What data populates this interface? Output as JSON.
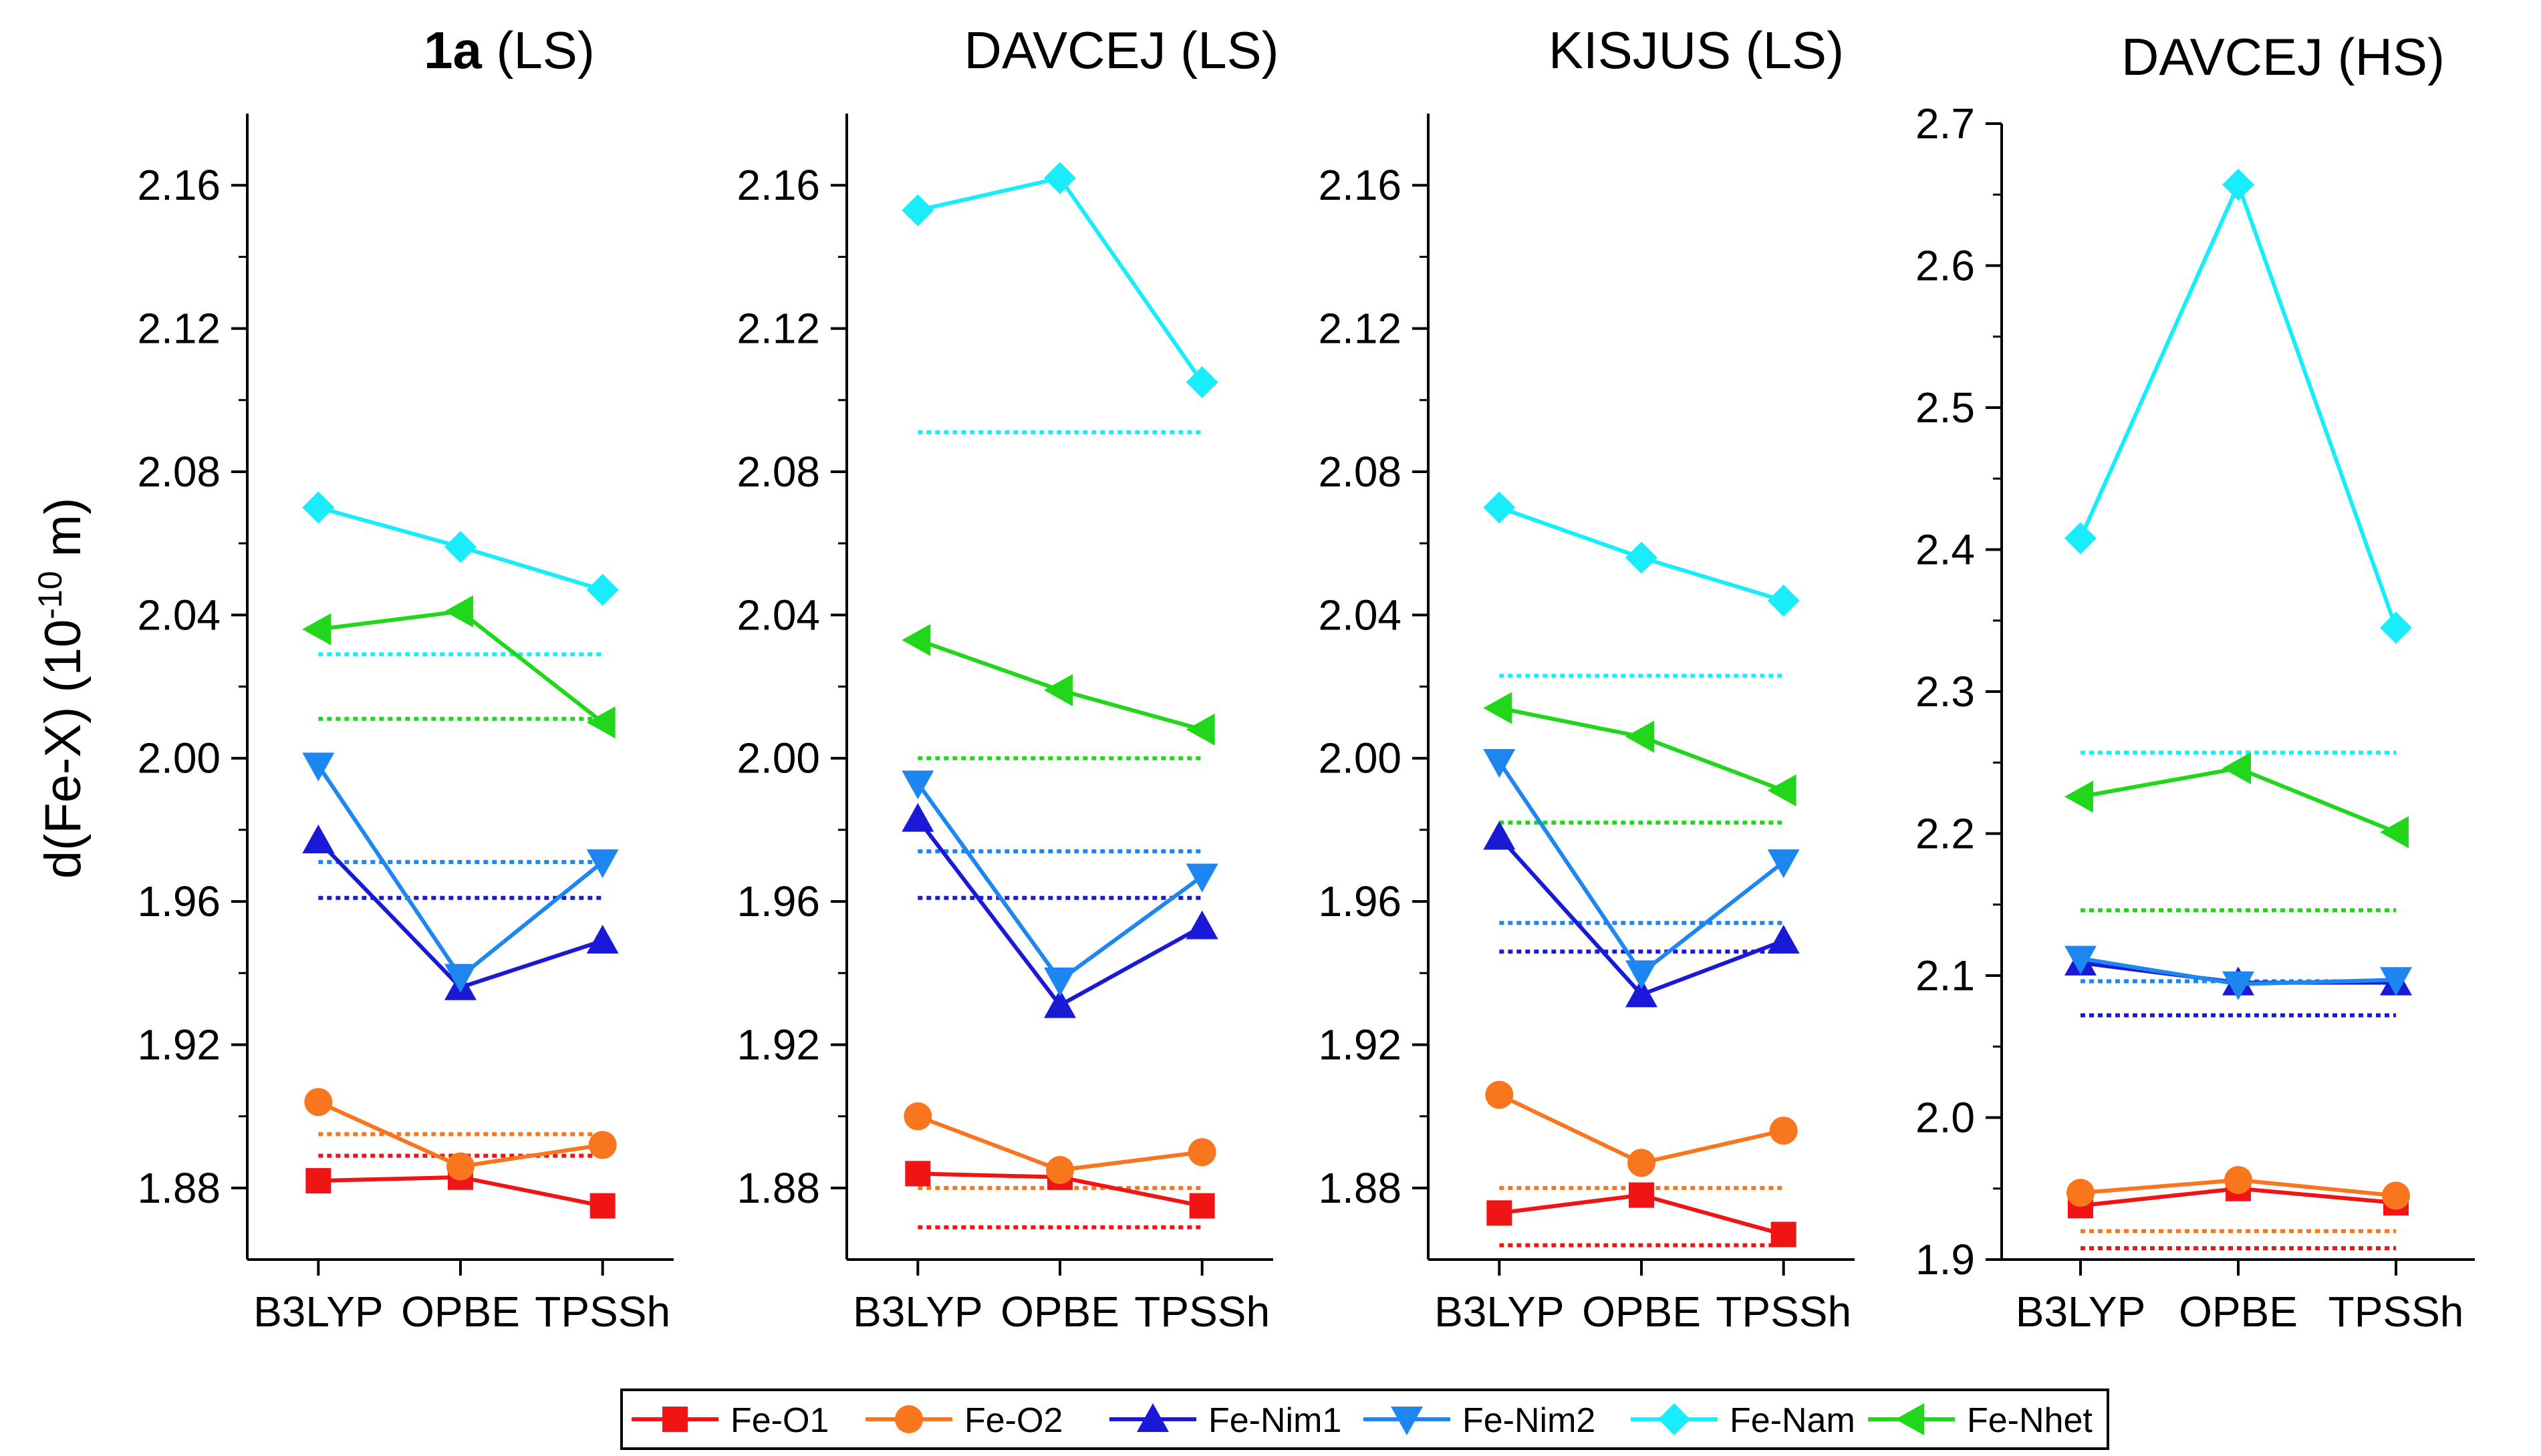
{
  "figure": {
    "ylabel_main": "d(Fe-X) (10",
    "ylabel_sup": "-10",
    "ylabel_unit": " m)"
  },
  "colors": {
    "Fe-O1": "#f01414",
    "Fe-O2": "#f7761e",
    "Fe-Nim1": "#1a1ad6",
    "Fe-Nim2": "#1e86f0",
    "Fe-Nam": "#19ecfa",
    "Fe-Nhet": "#22d61b"
  },
  "legend": [
    {
      "name": "Fe-O1",
      "marker": "square"
    },
    {
      "name": "Fe-O2",
      "marker": "circle"
    },
    {
      "name": "Fe-Nim1",
      "marker": "triangle-up"
    },
    {
      "name": "Fe-Nim2",
      "marker": "triangle-down"
    },
    {
      "name": "Fe-Nam",
      "marker": "diamond"
    },
    {
      "name": "Fe-Nhet",
      "marker": "triangle-left"
    }
  ],
  "chart_data": [
    {
      "type": "line",
      "title_bold": "1a",
      "title_rest": " (LS)",
      "categories": [
        "B3LYP",
        "OPBE",
        "TPSSh"
      ],
      "ylim": [
        1.86,
        2.18
      ],
      "yticks": [
        "1.88",
        "1.92",
        "1.96",
        "2.00",
        "2.04",
        "2.08",
        "2.12",
        "2.16"
      ],
      "series": [
        {
          "name": "Fe-O1",
          "values": [
            1.882,
            1.883,
            1.875
          ]
        },
        {
          "name": "Fe-O2",
          "values": [
            1.904,
            1.886,
            1.892
          ]
        },
        {
          "name": "Fe-Nim1",
          "values": [
            1.977,
            1.936,
            1.949
          ]
        },
        {
          "name": "Fe-Nim2",
          "values": [
            1.998,
            1.939,
            1.971
          ]
        },
        {
          "name": "Fe-Nam",
          "values": [
            2.07,
            2.059,
            2.047
          ]
        },
        {
          "name": "Fe-Nhet",
          "values": [
            2.036,
            2.041,
            2.01
          ]
        }
      ],
      "reference_lines": [
        {
          "name": "Fe-O1",
          "value": 1.889
        },
        {
          "name": "Fe-O2",
          "value": 1.895
        },
        {
          "name": "Fe-Nim1",
          "value": 1.961
        },
        {
          "name": "Fe-Nim2",
          "value": 1.971
        },
        {
          "name": "Fe-Nam",
          "value": 2.029
        },
        {
          "name": "Fe-Nhet",
          "value": 2.011
        }
      ]
    },
    {
      "type": "line",
      "title_bold": "",
      "title_rest": "DAVCEJ (LS)",
      "categories": [
        "B3LYP",
        "OPBE",
        "TPSSh"
      ],
      "ylim": [
        1.86,
        2.18
      ],
      "yticks": [
        "1.88",
        "1.92",
        "1.96",
        "2.00",
        "2.04",
        "2.08",
        "2.12",
        "2.16"
      ],
      "series": [
        {
          "name": "Fe-O1",
          "values": [
            1.884,
            1.883,
            1.875
          ]
        },
        {
          "name": "Fe-O2",
          "values": [
            1.9,
            1.885,
            1.89
          ]
        },
        {
          "name": "Fe-Nim1",
          "values": [
            1.983,
            1.931,
            1.953
          ]
        },
        {
          "name": "Fe-Nim2",
          "values": [
            1.993,
            1.938,
            1.967
          ]
        },
        {
          "name": "Fe-Nam",
          "values": [
            2.153,
            2.162,
            2.105
          ]
        },
        {
          "name": "Fe-Nhet",
          "values": [
            2.033,
            2.019,
            2.008
          ]
        }
      ],
      "reference_lines": [
        {
          "name": "Fe-O1",
          "value": 1.869
        },
        {
          "name": "Fe-O2",
          "value": 1.88
        },
        {
          "name": "Fe-Nim1",
          "value": 1.961
        },
        {
          "name": "Fe-Nim2",
          "value": 1.974
        },
        {
          "name": "Fe-Nam",
          "value": 2.091
        },
        {
          "name": "Fe-Nhet",
          "value": 2.0
        }
      ]
    },
    {
      "type": "line",
      "title_bold": "",
      "title_rest": "KISJUS (LS)",
      "categories": [
        "B3LYP",
        "OPBE",
        "TPSSh"
      ],
      "ylim": [
        1.86,
        2.18
      ],
      "yticks": [
        "1.88",
        "1.92",
        "1.96",
        "2.00",
        "2.04",
        "2.08",
        "2.12",
        "2.16"
      ],
      "series": [
        {
          "name": "Fe-O1",
          "values": [
            1.873,
            1.878,
            1.867
          ]
        },
        {
          "name": "Fe-O2",
          "values": [
            1.906,
            1.887,
            1.896
          ]
        },
        {
          "name": "Fe-Nim1",
          "values": [
            1.978,
            1.934,
            1.949
          ]
        },
        {
          "name": "Fe-Nim2",
          "values": [
            1.999,
            1.94,
            1.971
          ]
        },
        {
          "name": "Fe-Nam",
          "values": [
            2.07,
            2.056,
            2.044
          ]
        },
        {
          "name": "Fe-Nhet",
          "values": [
            2.014,
            2.006,
            1.991
          ]
        }
      ],
      "reference_lines": [
        {
          "name": "Fe-O1",
          "value": 1.864
        },
        {
          "name": "Fe-O2",
          "value": 1.88
        },
        {
          "name": "Fe-Nim1",
          "value": 1.946
        },
        {
          "name": "Fe-Nim2",
          "value": 1.954
        },
        {
          "name": "Fe-Nam",
          "value": 2.023
        },
        {
          "name": "Fe-Nhet",
          "value": 1.982
        }
      ]
    },
    {
      "type": "line",
      "title_bold": "",
      "title_rest": "DAVCEJ (HS)",
      "categories": [
        "B3LYP",
        "OPBE",
        "TPSSh"
      ],
      "ylim": [
        1.9,
        2.7
      ],
      "yticks": [
        "1.9",
        "2.0",
        "2.1",
        "2.2",
        "2.3",
        "2.4",
        "2.5",
        "2.6",
        "2.7"
      ],
      "series": [
        {
          "name": "Fe-O1",
          "values": [
            1.938,
            1.95,
            1.94
          ]
        },
        {
          "name": "Fe-O2",
          "values": [
            1.947,
            1.956,
            1.945
          ]
        },
        {
          "name": "Fe-Nim1",
          "values": [
            2.109,
            2.095,
            2.095
          ]
        },
        {
          "name": "Fe-Nim2",
          "values": [
            2.112,
            2.094,
            2.097
          ]
        },
        {
          "name": "Fe-Nam",
          "values": [
            2.408,
            2.657,
            2.345
          ]
        },
        {
          "name": "Fe-Nhet",
          "values": [
            2.226,
            2.246,
            2.201
          ]
        }
      ],
      "reference_lines": [
        {
          "name": "Fe-O1",
          "value": 1.908
        },
        {
          "name": "Fe-O2",
          "value": 1.92
        },
        {
          "name": "Fe-Nim1",
          "value": 2.072
        },
        {
          "name": "Fe-Nim2",
          "value": 2.096
        },
        {
          "name": "Fe-Nam",
          "value": 2.257
        },
        {
          "name": "Fe-Nhet",
          "value": 2.146
        }
      ]
    }
  ]
}
